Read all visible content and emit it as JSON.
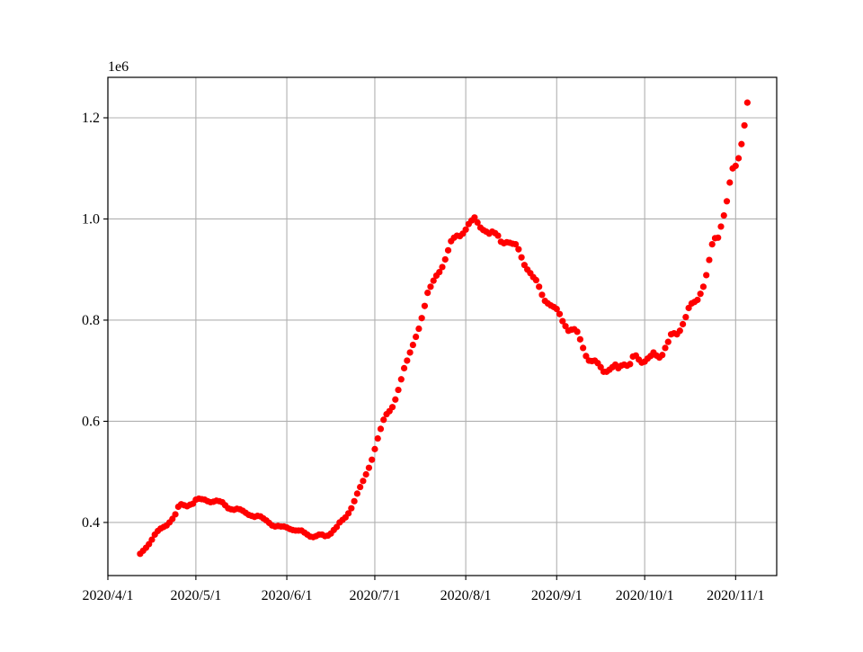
{
  "chart_data": {
    "type": "scatter",
    "title": "",
    "xlabel": "",
    "ylabel": "",
    "y_offset_label": "1e6",
    "marker_color": "#ff0000",
    "grid": true,
    "xlim": [
      "2020-04-01",
      "2020-11-15"
    ],
    "ylim": [
      0.295,
      1.28
    ],
    "x_ticks": [
      {
        "date": "2020-04-01",
        "label": "2020/4/1"
      },
      {
        "date": "2020-05-01",
        "label": "2020/5/1"
      },
      {
        "date": "2020-06-01",
        "label": "2020/6/1"
      },
      {
        "date": "2020-07-01",
        "label": "2020/7/1"
      },
      {
        "date": "2020-08-01",
        "label": "2020/8/1"
      },
      {
        "date": "2020-09-01",
        "label": "2020/9/1"
      },
      {
        "date": "2020-10-01",
        "label": "2020/10/1"
      },
      {
        "date": "2020-11-01",
        "label": "2020/11/1"
      }
    ],
    "y_ticks": [
      {
        "value": 0.4,
        "label": "0.4"
      },
      {
        "value": 0.6,
        "label": "0.6"
      },
      {
        "value": 0.8,
        "label": "0.8"
      },
      {
        "value": 1.0,
        "label": "1.0"
      },
      {
        "value": 1.2,
        "label": "1.2"
      }
    ],
    "series": [
      {
        "start_date": "2020-04-12",
        "step_days": 1,
        "y": [
          0.338,
          0.344,
          0.35,
          0.357,
          0.366,
          0.376,
          0.383,
          0.388,
          0.391,
          0.394,
          0.4,
          0.407,
          0.416,
          0.431,
          0.436,
          0.434,
          0.432,
          0.435,
          0.437,
          0.445,
          0.447,
          0.446,
          0.445,
          0.442,
          0.44,
          0.441,
          0.443,
          0.442,
          0.44,
          0.434,
          0.428,
          0.426,
          0.425,
          0.427,
          0.426,
          0.423,
          0.419,
          0.415,
          0.413,
          0.411,
          0.413,
          0.412,
          0.408,
          0.404,
          0.399,
          0.394,
          0.392,
          0.393,
          0.392,
          0.392,
          0.39,
          0.387,
          0.385,
          0.384,
          0.384,
          0.384,
          0.38,
          0.376,
          0.372,
          0.371,
          0.373,
          0.376,
          0.376,
          0.373,
          0.374,
          0.378,
          0.385,
          0.391,
          0.4,
          0.405,
          0.41,
          0.418,
          0.428,
          0.442,
          0.457,
          0.47,
          0.482,
          0.495,
          0.508,
          0.524,
          0.545,
          0.566,
          0.585,
          0.603,
          0.614,
          0.62,
          0.628,
          0.643,
          0.662,
          0.683,
          0.705,
          0.72,
          0.736,
          0.751,
          0.767,
          0.783,
          0.804,
          0.828,
          0.854,
          0.866,
          0.878,
          0.888,
          0.895,
          0.905,
          0.92,
          0.938,
          0.956,
          0.963,
          0.967,
          0.966,
          0.971,
          0.979,
          0.99,
          0.997,
          1.003,
          0.993,
          0.983,
          0.978,
          0.975,
          0.971,
          0.975,
          0.972,
          0.967,
          0.955,
          0.952,
          0.954,
          0.953,
          0.951,
          0.95,
          0.94,
          0.924,
          0.909,
          0.9,
          0.893,
          0.885,
          0.879,
          0.866,
          0.85,
          0.838,
          0.833,
          0.829,
          0.826,
          0.822,
          0.812,
          0.798,
          0.788,
          0.779,
          0.781,
          0.782,
          0.777,
          0.762,
          0.745,
          0.729,
          0.72,
          0.719,
          0.72,
          0.715,
          0.707,
          0.698,
          0.698,
          0.702,
          0.707,
          0.712,
          0.705,
          0.71,
          0.712,
          0.71,
          0.713,
          0.728,
          0.73,
          0.722,
          0.716,
          0.718,
          0.724,
          0.729,
          0.736,
          0.73,
          0.726,
          0.731,
          0.745,
          0.757,
          0.772,
          0.774,
          0.772,
          0.779,
          0.792,
          0.806,
          0.824,
          0.833,
          0.836,
          0.84,
          0.852,
          0.866,
          0.889,
          0.919,
          0.95,
          0.962,
          0.963,
          0.985,
          1.007,
          1.035,
          1.072,
          1.1,
          1.105,
          1.12,
          1.148,
          1.185,
          1.23
        ]
      }
    ]
  }
}
